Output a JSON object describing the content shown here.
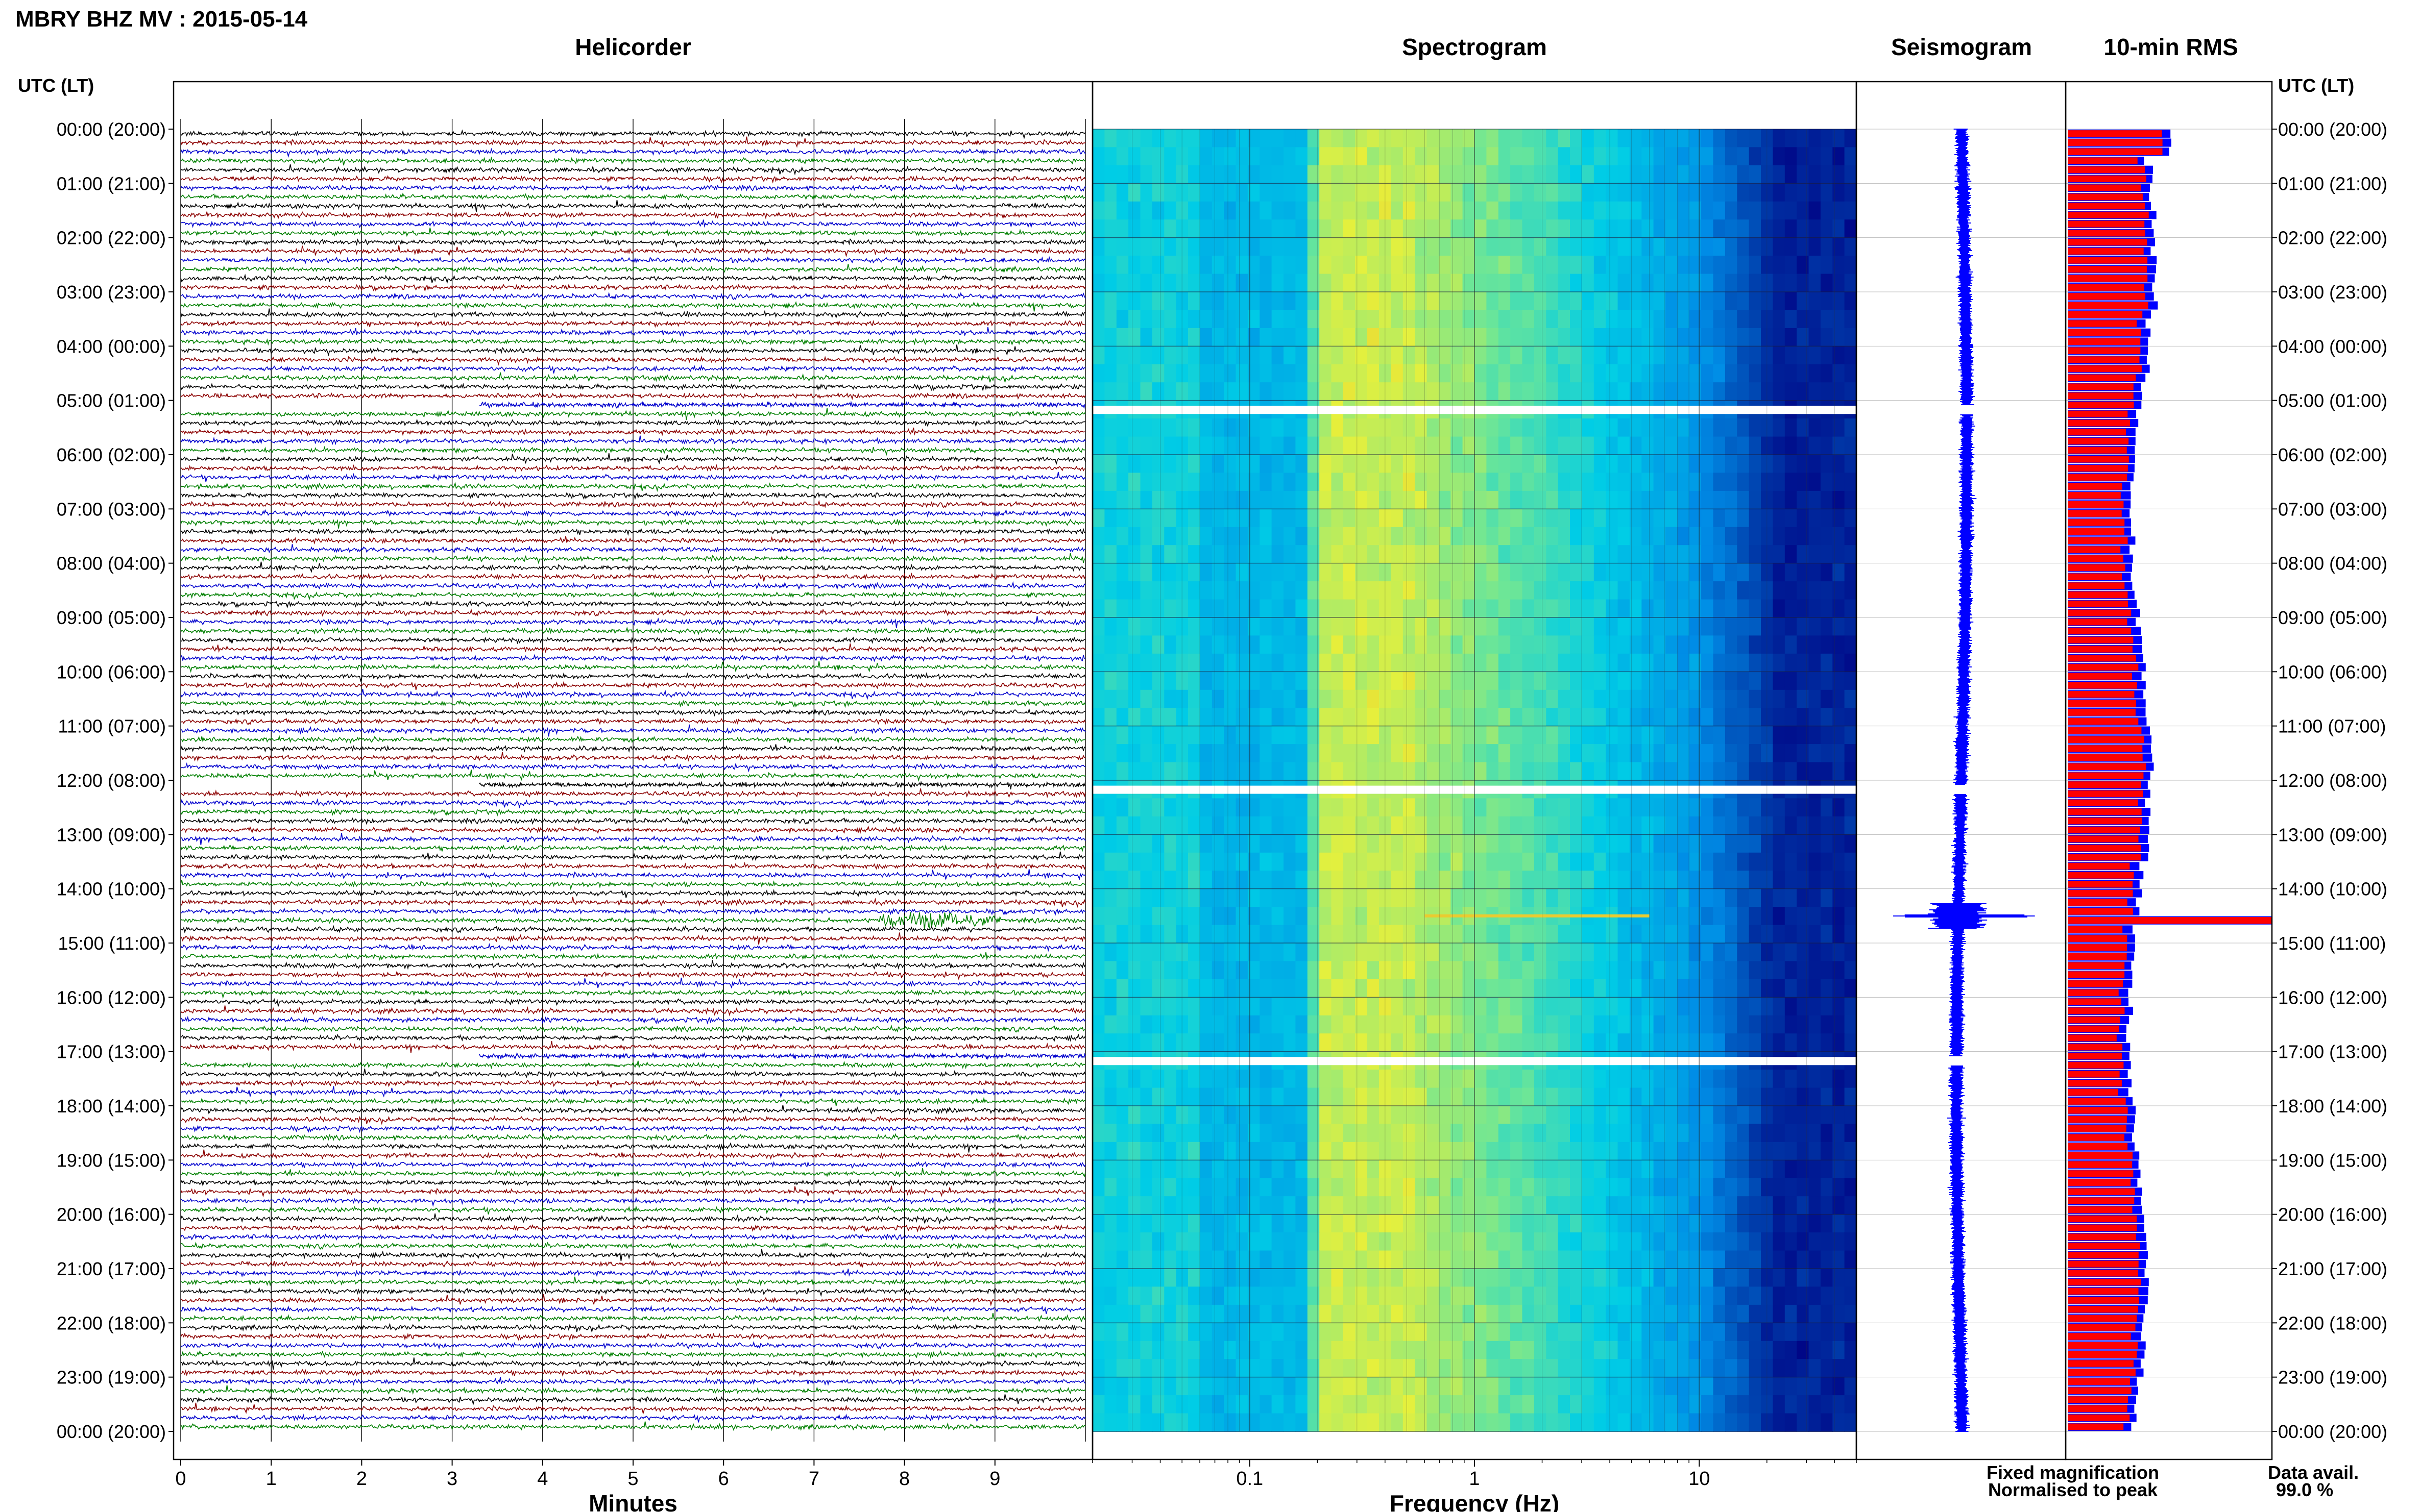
{
  "header": {
    "station_title": "MBRY BHZ MV : 2015-05-14"
  },
  "panels": {
    "helicorder": "Helicorder",
    "spectrogram": "Spectrogram",
    "seismogram": "Seismogram",
    "rms": "10-min RMS"
  },
  "axes": {
    "left_time_header": "UTC (LT)",
    "right_time_header": "UTC (LT)",
    "minutes_label": "Minutes",
    "frequency_label": "Frequency (Hz)"
  },
  "legend": {
    "fixed": "Fixed magnification",
    "fixed_color": "#0000ff",
    "normalised": "Normalised to peak",
    "normalised_color": "#ff0000",
    "avail_label": "Data avail.",
    "avail_value": "99.0 %"
  },
  "colors": {
    "trace_cycle": [
      "#000000",
      "#8b0000",
      "#0000cd",
      "#008000"
    ],
    "rms_fixed": "#0000ff",
    "rms_normalised": "#ff0000",
    "seismogram": "#0000ff"
  },
  "chart_data": [
    {
      "type": "line",
      "panel": "helicorder",
      "xlabel": "Minutes",
      "xlim": [
        0,
        10
      ],
      "x_ticks": [
        "0",
        "1",
        "2",
        "3",
        "4",
        "5",
        "6",
        "7",
        "8",
        "9"
      ],
      "hour_labels": [
        "00:00 (20:00)",
        "01:00 (21:00)",
        "02:00 (22:00)",
        "03:00 (23:00)",
        "04:00 (00:00)",
        "05:00 (01:00)",
        "06:00 (02:00)",
        "07:00 (03:00)",
        "08:00 (04:00)",
        "09:00 (05:00)",
        "10:00 (06:00)",
        "11:00 (07:00)",
        "12:00 (08:00)",
        "13:00 (09:00)",
        "14:00 (10:00)",
        "15:00 (11:00)",
        "16:00 (12:00)",
        "17:00 (13:00)",
        "18:00 (14:00)",
        "19:00 (15:00)",
        "20:00 (16:00)",
        "21:00 (17:00)",
        "22:00 (18:00)",
        "23:00 (19:00)",
        "00:00 (20:00)"
      ],
      "rows": 144,
      "row_minutes": 10,
      "events": [
        {
          "utc": "14:00",
          "minute_start": 7.7,
          "minute_end": 9.2,
          "peak_minute": 8.5
        }
      ],
      "data_gaps": [
        {
          "utc_start": "05:00"
        },
        {
          "utc_start": "12:00"
        },
        {
          "utc_start": "17:00"
        }
      ]
    },
    {
      "type": "heatmap",
      "panel": "spectrogram",
      "xlabel": "Frequency (Hz)",
      "xscale": "log",
      "xlim": [
        0.02,
        50
      ],
      "x_ticks": [
        "0.1",
        "1",
        "10"
      ],
      "dominant_band_hz": [
        0.2,
        0.5
      ]
    },
    {
      "type": "line",
      "panel": "seismogram",
      "color": "#0000ff",
      "spike_utc": "14:00"
    },
    {
      "type": "bar",
      "panel": "rms",
      "orientation": "horizontal",
      "series": [
        {
          "name": "Fixed magnification",
          "color": "#0000ff"
        },
        {
          "name": "Normalised to peak",
          "color": "#ff0000"
        }
      ],
      "peak_utc": "14:00"
    }
  ]
}
